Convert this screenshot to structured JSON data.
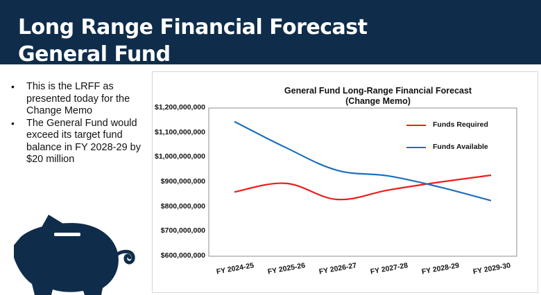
{
  "slide": {
    "title_line1": "Long Range Financial Forecast",
    "title_line2": "General Fund",
    "header_color": "#0f2d4a",
    "bullets": [
      "This is the LRFF as presented today for the Change Memo",
      "The General Fund would exceed its target fund balance in FY 2028-29 by $20 million"
    ],
    "illustration_icon": "piggy-bank-icon"
  },
  "chart_data": {
    "type": "line",
    "title": "General Fund Long-Range Financial Forecast",
    "subtitle": "(Change Memo)",
    "categories": [
      "FY 2024-25",
      "FY 2025-26",
      "FY 2026-27",
      "FY 2027-28",
      "FY 2028-29",
      "FY 2029-30"
    ],
    "y_tick_labels": [
      "$1,200,000,000",
      "$1,100,000,000",
      "$1,000,000,000",
      "$900,000,000",
      "$800,000,000",
      "$700,000,000",
      "$600,000,000"
    ],
    "ylim": [
      600000000,
      1200000000
    ],
    "grid": false,
    "legend_position": "top-right",
    "series": [
      {
        "name": "Funds Required",
        "color": "#ee1c1c",
        "values": [
          860000000,
          895000000,
          830000000,
          868000000,
          900000000,
          928000000
        ]
      },
      {
        "name": "Funds Available",
        "color": "#1f6fbf",
        "values": [
          1145000000,
          1040000000,
          948000000,
          925000000,
          880000000,
          825000000
        ]
      }
    ]
  }
}
